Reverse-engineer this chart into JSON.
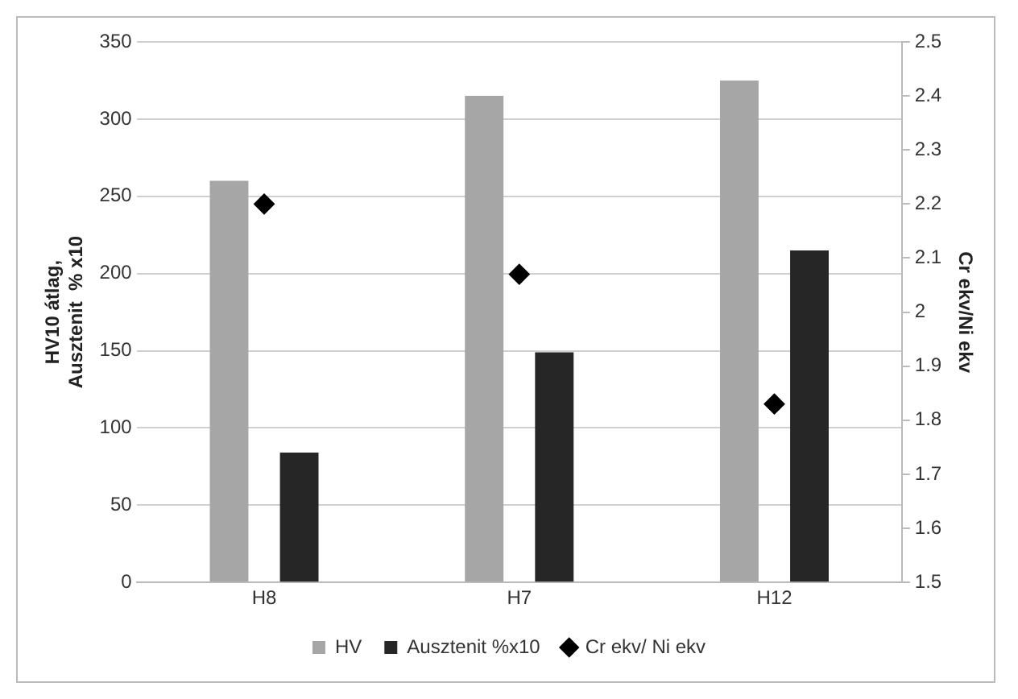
{
  "chart_data": {
    "type": "bar",
    "categories": [
      "H8",
      "H7",
      "H12"
    ],
    "ylabel": "HV10 átlag,\nAusztenit  % x10",
    "y2label": "Cr ekv/Ni ekv",
    "series": [
      {
        "name": "HV",
        "color": "#a6a6a6",
        "values": [
          260,
          315,
          325
        ]
      },
      {
        "name": "Ausztenit %x10",
        "color": "#262626",
        "values": [
          84,
          149,
          215
        ]
      },
      {
        "name": "Cr ekv/ Ni ekv",
        "type": "scatter",
        "axis": "y2",
        "color": "#000000",
        "marker": "diamond",
        "values": [
          2.2,
          2.07,
          1.83
        ]
      }
    ],
    "ylim": [
      0,
      350
    ],
    "yticks": [
      0,
      50,
      100,
      150,
      200,
      250,
      300,
      350
    ],
    "y2lim": [
      1.5,
      2.5
    ],
    "y2ticks": [
      1.5,
      1.6,
      1.7,
      1.8,
      1.9,
      2,
      2.1,
      2.2,
      2.3,
      2.4,
      2.5
    ],
    "grid": "y",
    "legend": "bottom"
  }
}
